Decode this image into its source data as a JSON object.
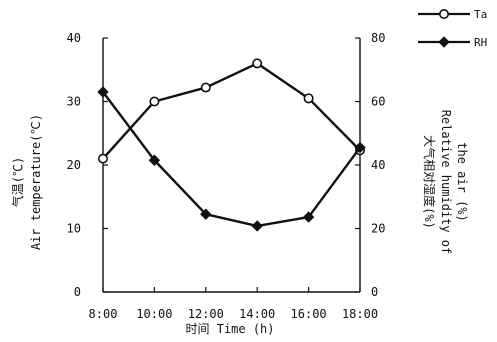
{
  "chart_data": {
    "type": "line",
    "x": [
      "8:00",
      "10:00",
      "12:00",
      "14:00",
      "16:00",
      "18:00"
    ],
    "series": [
      {
        "name": "Ta",
        "axis": "left",
        "marker": "circle-open",
        "values": [
          21,
          30,
          32.2,
          36,
          30.5,
          22.3
        ]
      },
      {
        "name": "RH",
        "axis": "right",
        "marker": "diamond-filled",
        "values": [
          63,
          41.5,
          24.5,
          20.8,
          23.6,
          45.5
        ]
      }
    ],
    "xlabel": "时间 Time (h)",
    "ylabel_left": [
      "气温(℃)",
      "Air temperature(℃)"
    ],
    "ylabel_right": [
      "大气相对湿度(%)",
      "Relative humidity of",
      "the air (%)"
    ],
    "ylim_left": [
      0,
      40
    ],
    "yticks_left": [
      0,
      10,
      20,
      30,
      40
    ],
    "ylim_right": [
      0,
      80
    ],
    "yticks_right": [
      0,
      20,
      40,
      60,
      80
    ],
    "grid": false,
    "legend_position": "top-right",
    "line_color": "#111111"
  }
}
